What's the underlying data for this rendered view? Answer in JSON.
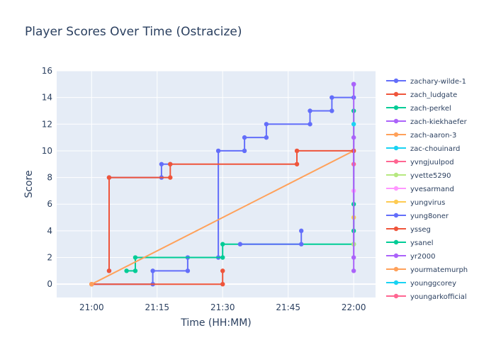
{
  "chart_data": {
    "type": "line",
    "line_shape": "step",
    "title": "Player Scores Over Time (Ostracize)",
    "xlabel": "Time (HH:MM)",
    "ylabel": "Score",
    "x_unit": "HH:MM",
    "xlim": [
      "20:52",
      "22:05"
    ],
    "ylim": [
      -1,
      16
    ],
    "x_ticks": [
      "21:00",
      "21:15",
      "21:30",
      "21:45",
      "22:00"
    ],
    "y_ticks": [
      0,
      2,
      4,
      6,
      8,
      10,
      12,
      14,
      16
    ],
    "grid": true,
    "legend_placement": "right",
    "background_color": "#e5ecf6",
    "series": [
      {
        "name": "zachary-wilde-1",
        "color": "#636efa",
        "points": [
          [
            "21:00",
            0
          ],
          [
            "21:14",
            0
          ],
          [
            "21:14",
            1
          ],
          [
            "21:22",
            1
          ],
          [
            "21:22",
            2
          ],
          [
            "21:29",
            2
          ],
          [
            "21:29",
            10
          ],
          [
            "21:35",
            10
          ],
          [
            "21:35",
            11
          ],
          [
            "21:40",
            11
          ],
          [
            "21:40",
            12
          ],
          [
            "21:50",
            12
          ],
          [
            "21:50",
            13
          ],
          [
            "21:55",
            13
          ],
          [
            "21:55",
            14
          ],
          [
            "22:00",
            14
          ],
          [
            "22:00",
            15
          ]
        ]
      },
      {
        "name": "zach_ludgate",
        "color": "#ef553b",
        "points": [
          [
            "21:00",
            0
          ],
          [
            "21:30",
            0
          ],
          [
            "21:30",
            1
          ]
        ]
      },
      {
        "name": "zach-perkel",
        "color": "#00cc96",
        "points": [
          [
            "21:08",
            1
          ],
          [
            "21:10",
            1
          ],
          [
            "21:10",
            2
          ],
          [
            "21:30",
            2
          ],
          [
            "21:30",
            3
          ],
          [
            "22:00",
            3
          ],
          [
            "22:00",
            13
          ]
        ]
      },
      {
        "name": "zach-kiekhaefer",
        "color": "#ab63fa",
        "points": [
          [
            "22:00",
            1
          ],
          [
            "22:00",
            15
          ]
        ]
      },
      {
        "name": "zach-aaron-3",
        "color": "#ffa15a",
        "points": [
          [
            "21:00",
            0
          ],
          [
            "22:00",
            10
          ]
        ]
      },
      {
        "name": "zac-chouinard",
        "color": "#19d3f3",
        "points": [
          [
            "22:00",
            12
          ]
        ]
      },
      {
        "name": "yvngjuulpod",
        "color": "#ff6692",
        "points": [
          [
            "22:00",
            9
          ]
        ]
      },
      {
        "name": "yvette5290",
        "color": "#b6e880",
        "points": [
          [
            "22:00",
            3
          ]
        ]
      },
      {
        "name": "yvesarmand",
        "color": "#ff97ff",
        "points": [
          [
            "22:00",
            7
          ]
        ]
      },
      {
        "name": "yungvirus",
        "color": "#fecb52",
        "points": [
          [
            "22:00",
            5
          ]
        ]
      },
      {
        "name": "yung8oner",
        "color": "#636efa",
        "points": [
          [
            "21:04",
            1
          ],
          [
            "21:04",
            8
          ],
          [
            "21:16",
            8
          ],
          [
            "21:16",
            9
          ],
          [
            "21:18",
            9
          ]
        ]
      },
      {
        "name": "ysseg",
        "color": "#ef553b",
        "points": [
          [
            "21:04",
            1
          ],
          [
            "21:04",
            8
          ],
          [
            "21:18",
            8
          ],
          [
            "21:18",
            9
          ],
          [
            "21:47",
            9
          ],
          [
            "21:47",
            10
          ],
          [
            "22:00",
            10
          ]
        ]
      },
      {
        "name": "ysanel",
        "color": "#00cc96",
        "points": [
          [
            "22:00",
            4
          ],
          [
            "22:00",
            6
          ]
        ]
      },
      {
        "name": "yr2000",
        "color": "#ab63fa",
        "points": [
          [
            "22:00",
            2
          ],
          [
            "22:00",
            11
          ]
        ]
      },
      {
        "name": "yourmatemurph",
        "color": "#ffa15a",
        "points": [
          [
            "21:00",
            0
          ]
        ]
      },
      {
        "name": "younggcorey",
        "color": "#19d3f3",
        "points": []
      },
      {
        "name": "youngarkofficial",
        "color": "#ff6692",
        "points": []
      }
    ],
    "extra_points": [
      {
        "series": "zachary-wilde-1",
        "points": [
          [
            "21:34",
            3
          ],
          [
            "21:48",
            3
          ],
          [
            "21:48",
            4
          ]
        ]
      }
    ]
  }
}
